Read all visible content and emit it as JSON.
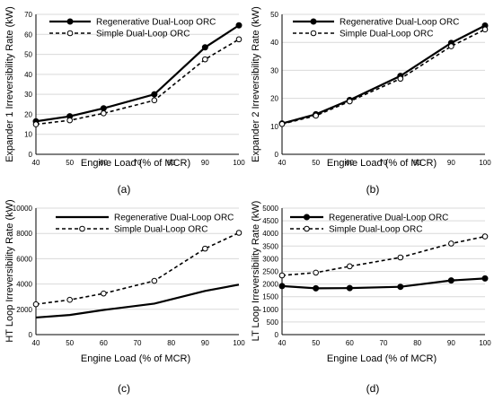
{
  "chart_data": [
    {
      "type": "line",
      "panel_label": "(a)",
      "xlabel": "Engine Load (% of MCR)",
      "ylabel": "Expander 1 Irreversibility Rate (kW)",
      "x": [
        40,
        50,
        60,
        75,
        90,
        100
      ],
      "xlim": [
        40,
        100
      ],
      "xticks": [
        "40",
        "50",
        "60",
        "70",
        "80",
        "90",
        "100"
      ],
      "ylim": [
        0,
        70
      ],
      "yticks": [
        "0",
        "10",
        "20",
        "30",
        "40",
        "50",
        "60",
        "70"
      ],
      "grid": "horizontal",
      "legend_position": "top-left",
      "series": [
        {
          "name": "Regenerative Dual-Loop ORC",
          "values": [
            16.5,
            19,
            23,
            30,
            53.5,
            64.5
          ],
          "style": "solid",
          "marker": "filled-circle",
          "color": "#000000"
        },
        {
          "name": "Simple Dual-Loop ORC",
          "values": [
            15,
            17,
            20.5,
            27,
            47.5,
            57.5
          ],
          "style": "dashed",
          "marker": "open-circle",
          "color": "#000000"
        }
      ]
    },
    {
      "type": "line",
      "panel_label": "(b)",
      "xlabel": "Engine Load (% of MCR)",
      "ylabel": "Expander 2 Irreversibility Rate (kW)",
      "x": [
        40,
        50,
        60,
        75,
        90,
        100
      ],
      "xlim": [
        40,
        100
      ],
      "xticks": [
        "40",
        "50",
        "60",
        "70",
        "80",
        "90",
        "100"
      ],
      "ylim": [
        0,
        50
      ],
      "yticks": [
        "0",
        "10",
        "20",
        "30",
        "40",
        "50"
      ],
      "grid": "horizontal",
      "legend_position": "top-left",
      "series": [
        {
          "name": "Regenerative Dual-Loop ORC",
          "values": [
            11,
            14.3,
            19.4,
            28,
            39.8,
            46
          ],
          "style": "solid",
          "marker": "filled-circle",
          "color": "#000000"
        },
        {
          "name": "Simple Dual-Loop ORC",
          "values": [
            10.8,
            13.8,
            18.9,
            27,
            38.6,
            44.6
          ],
          "style": "dashed",
          "marker": "open-circle",
          "color": "#000000"
        }
      ]
    },
    {
      "type": "line",
      "panel_label": "(c)",
      "xlabel": "Engine Load (% of MCR)",
      "ylabel": "HT Loop Irreversibility Rate (kW)",
      "x": [
        40,
        50,
        60,
        75,
        90,
        100
      ],
      "xlim": [
        40,
        100
      ],
      "xticks": [
        "40",
        "50",
        "60",
        "70",
        "80",
        "90",
        "100"
      ],
      "ylim": [
        0,
        10000
      ],
      "yticks": [
        "0",
        "2000",
        "4000",
        "6000",
        "8000",
        "10000"
      ],
      "grid": "horizontal",
      "legend_position": "top-left",
      "series": [
        {
          "name": "Regenerative Dual-Loop ORC",
          "values": [
            1350,
            1550,
            1950,
            2450,
            3450,
            3950
          ],
          "style": "solid",
          "marker": "none",
          "color": "#000000"
        },
        {
          "name": "Simple Dual-Loop ORC",
          "values": [
            2400,
            2750,
            3250,
            4250,
            6800,
            8050
          ],
          "style": "dashed",
          "marker": "open-circle",
          "color": "#000000"
        }
      ]
    },
    {
      "type": "line",
      "panel_label": "(d)",
      "xlabel": "Engine Load (% of MCR)",
      "ylabel": "LT Loop Irreversibility Rate (kW)",
      "x": [
        40,
        50,
        60,
        75,
        90,
        100
      ],
      "xlim": [
        40,
        100
      ],
      "xticks": [
        "40",
        "50",
        "60",
        "70",
        "80",
        "90",
        "100"
      ],
      "ylim": [
        0,
        5000
      ],
      "yticks": [
        "0",
        "500",
        "1000",
        "1500",
        "2000",
        "2500",
        "3000",
        "3500",
        "4000",
        "4500",
        "5000"
      ],
      "grid": "horizontal",
      "legend_position": "top-left",
      "series": [
        {
          "name": "Regenerative Dual-Loop ORC",
          "values": [
            1920,
            1830,
            1840,
            1890,
            2140,
            2220
          ],
          "style": "solid",
          "marker": "filled-circle",
          "color": "#000000"
        },
        {
          "name": "Simple Dual-Loop ORC",
          "values": [
            2340,
            2450,
            2700,
            3050,
            3600,
            3880
          ],
          "style": "dashed",
          "marker": "open-circle",
          "color": "#000000"
        }
      ]
    }
  ]
}
